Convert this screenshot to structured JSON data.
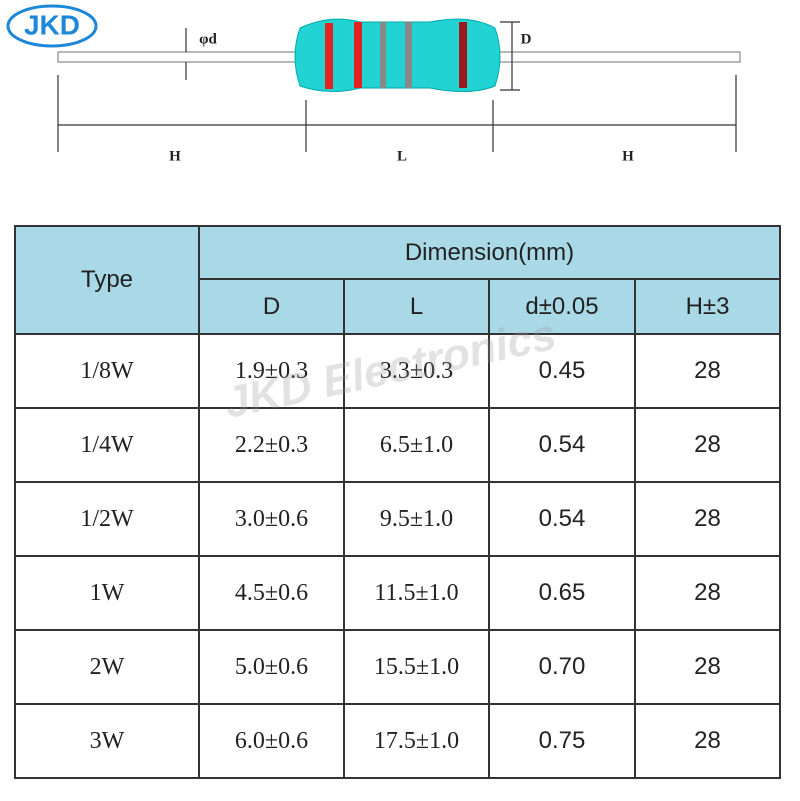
{
  "logo": "JKD",
  "diagram": {
    "phi_d": "φd",
    "diameter": "D",
    "lead_left": "H",
    "body": "L",
    "lead_right": "H"
  },
  "watermark": "JKD Electronics",
  "table": {
    "type_header": "Type",
    "group_header": "Dimension(mm)",
    "columns": [
      "D",
      "L",
      "d±0.05",
      "H±3"
    ],
    "rows": [
      [
        "1/8W",
        "1.9±0.3",
        "3.3±0.3",
        "0.45",
        "28"
      ],
      [
        "1/4W",
        "2.2±0.3",
        "6.5±1.0",
        "0.54",
        "28"
      ],
      [
        "1/2W",
        "3.0±0.6",
        "9.5±1.0",
        "0.54",
        "28"
      ],
      [
        "1W",
        "4.5±0.6",
        "11.5±1.0",
        "0.65",
        "28"
      ],
      [
        "2W",
        "5.0±0.6",
        "15.5±1.0",
        "0.70",
        "28"
      ],
      [
        "3W",
        "6.0±0.6",
        "17.5±1.0",
        "0.75",
        "28"
      ]
    ]
  }
}
